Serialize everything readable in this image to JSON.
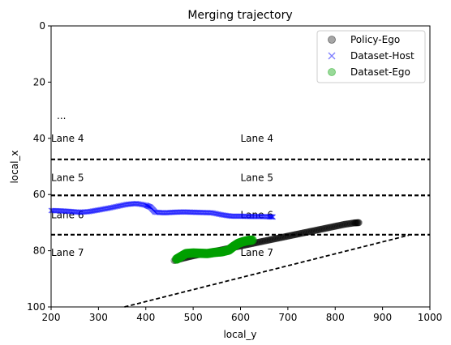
{
  "chart_data": {
    "type": "scatter",
    "title": "Merging trajectory",
    "xlabel": "local_y",
    "ylabel": "local_x",
    "xlim": [
      200,
      1000
    ],
    "ylim": [
      100,
      0
    ],
    "y_inverted": true,
    "xticks": [
      "200",
      "300",
      "400",
      "500",
      "600",
      "700",
      "800",
      "900",
      "1000"
    ],
    "xtick_values": [
      200,
      300,
      400,
      500,
      600,
      700,
      800,
      900,
      1000
    ],
    "yticks": [
      "0",
      "20",
      "40",
      "60",
      "80",
      "100"
    ],
    "ytick_values": [
      0,
      20,
      40,
      60,
      80,
      100
    ],
    "legend_position": "top-right",
    "series": [
      {
        "name": "Policy-Ego",
        "marker": "circle",
        "color": "#000000",
        "x": [
          460,
          480,
          500,
          520,
          540,
          560,
          580,
          600,
          620,
          640,
          660,
          680,
          700,
          720,
          740,
          760,
          780,
          800,
          820,
          840,
          850
        ],
        "y": [
          83.5,
          82.6,
          81.8,
          81.1,
          80.4,
          79.7,
          79.0,
          78.3,
          77.6,
          76.9,
          76.2,
          75.5,
          74.8,
          74.1,
          73.4,
          72.7,
          72.0,
          71.3,
          70.6,
          70.1,
          70.0
        ]
      },
      {
        "name": "Dataset-Host",
        "marker": "x",
        "color": "#0000ff",
        "x": [
          200,
          220,
          240,
          260,
          280,
          300,
          320,
          340,
          360,
          380,
          400,
          410,
          420,
          440,
          460,
          480,
          500,
          520,
          540,
          560,
          580,
          600,
          620,
          640,
          660,
          670
        ],
        "y": [
          65.7,
          65.8,
          66.0,
          66.3,
          66.1,
          65.5,
          64.9,
          64.2,
          63.5,
          63.2,
          63.8,
          64.5,
          66.3,
          66.5,
          66.3,
          66.2,
          66.3,
          66.4,
          66.5,
          67.2,
          67.7,
          67.7,
          67.8,
          67.8,
          67.9,
          68.0
        ]
      },
      {
        "name": "Dataset-Ego",
        "marker": "circle",
        "color": "#00a000",
        "x": [
          465,
          475,
          485,
          500,
          515,
          530,
          545,
          560,
          575,
          585,
          595,
          605,
          615,
          625
        ],
        "y": [
          83.0,
          82.0,
          81.0,
          80.8,
          80.9,
          81.0,
          80.6,
          80.4,
          79.8,
          78.5,
          77.4,
          76.8,
          76.4,
          76.2
        ]
      }
    ],
    "lane_lines": [
      {
        "x": [
          200,
          1000
        ],
        "y": [
          47.5,
          47.5
        ],
        "style": "dashed"
      },
      {
        "x": [
          200,
          1000
        ],
        "y": [
          60.3,
          60.3
        ],
        "style": "dashed"
      },
      {
        "x": [
          200,
          1000
        ],
        "y": [
          74.3,
          74.3
        ],
        "style": "dashed"
      },
      {
        "x": [
          355,
          955
        ],
        "y": [
          100,
          74.5
        ],
        "style": "dashed"
      }
    ],
    "annotations": [
      {
        "text": "...",
        "x": 212,
        "y": 32
      },
      {
        "text": "Lane 4",
        "x": 200,
        "y": 40
      },
      {
        "text": "Lane 4",
        "x": 600,
        "y": 40
      },
      {
        "text": "Lane 5",
        "x": 200,
        "y": 54
      },
      {
        "text": "Lane 5",
        "x": 600,
        "y": 54
      },
      {
        "text": "Lane 6",
        "x": 200,
        "y": 67.3
      },
      {
        "text": "Lane 6",
        "x": 600,
        "y": 67.3
      },
      {
        "text": "Lane 7",
        "x": 200,
        "y": 80.7
      },
      {
        "text": "Lane 7",
        "x": 600,
        "y": 80.7
      }
    ]
  }
}
